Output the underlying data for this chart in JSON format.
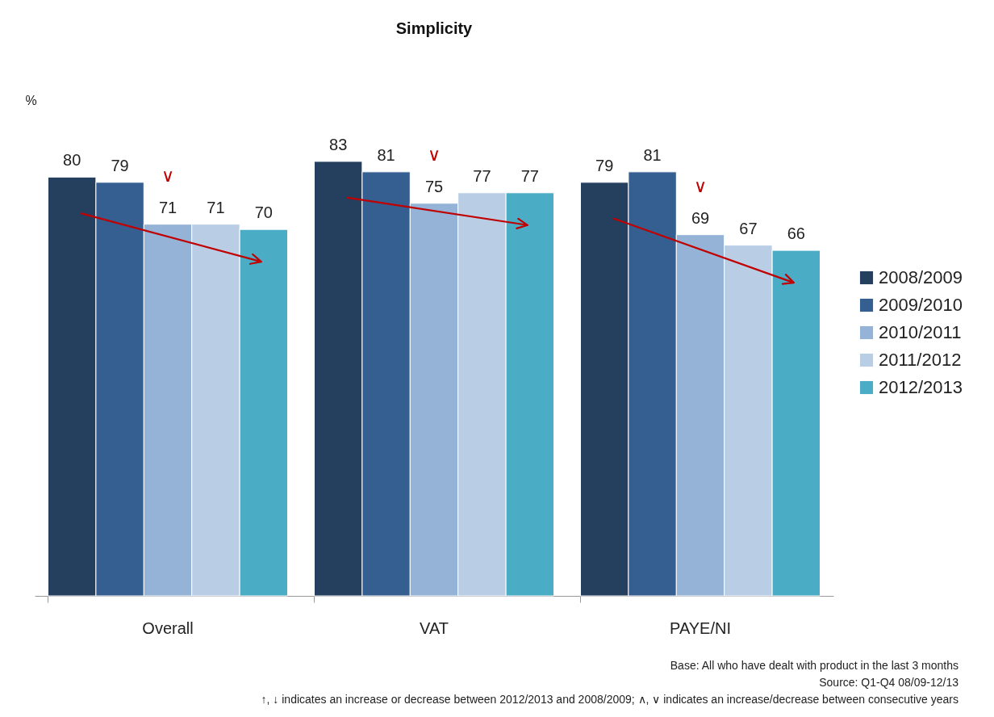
{
  "chart_data": {
    "type": "bar",
    "title": "Simplicity",
    "ylabel": "%",
    "categories": [
      "Overall",
      "VAT",
      "PAYE/NI"
    ],
    "series": [
      {
        "name": "2008/2009",
        "color": "#253f5f",
        "values": [
          80,
          83,
          79
        ]
      },
      {
        "name": "2009/2010",
        "color": "#365f91",
        "values": [
          79,
          81,
          81
        ]
      },
      {
        "name": "2010/2011",
        "color": "#95b3d7",
        "values": [
          71,
          75,
          69
        ]
      },
      {
        "name": "2011/2012",
        "color": "#b9cde5",
        "values": [
          71,
          77,
          67
        ]
      },
      {
        "name": "2012/2013",
        "color": "#4bacc6",
        "values": [
          70,
          77,
          66
        ]
      }
    ],
    "data_labels": true,
    "legend": "right",
    "grid": false,
    "annotations": [
      {
        "text": "∨",
        "x": "Overall",
        "y": 71
      },
      {
        "text": "∨",
        "x": "VAT",
        "y": 75
      },
      {
        "text": "∨",
        "x": "PAYE/NI",
        "y": 69
      },
      "Base: All who have dealt with product in the last 3 months",
      "Source: Q1-Q4 08/09-12/13",
      "↑, ↓ indicates an increase or decrease between 2012/2013 and 2008/2009; ∧, ∨ indicates an increase/decrease between consecutive years"
    ]
  }
}
